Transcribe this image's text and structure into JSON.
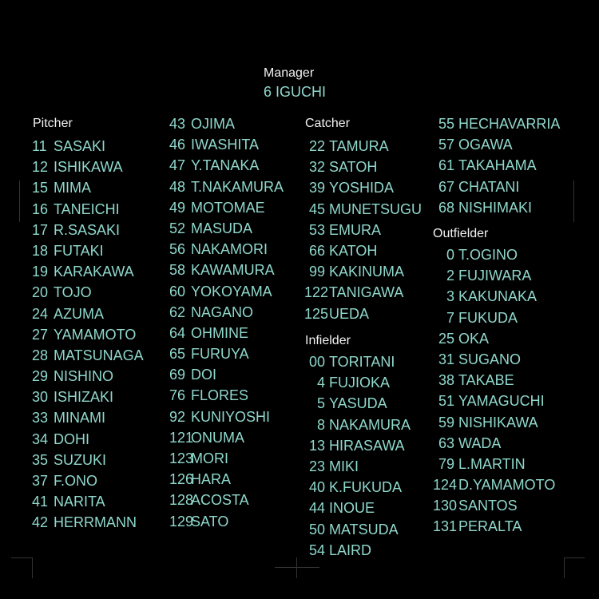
{
  "colors": {
    "text": "#8fd8cc",
    "heading": "#f2f2f2",
    "background": "#000000"
  },
  "manager": {
    "label": "Manager",
    "name": "6 IGUCHI"
  },
  "pitcher": {
    "label": "Pitcher",
    "players": [
      {
        "no": "11",
        "name": "SASAKI"
      },
      {
        "no": "12",
        "name": "ISHIKAWA"
      },
      {
        "no": "15",
        "name": "MIMA"
      },
      {
        "no": "16",
        "name": "TANEICHI"
      },
      {
        "no": "17",
        "name": "R.SASAKI"
      },
      {
        "no": "18",
        "name": "FUTAKI"
      },
      {
        "no": "19",
        "name": "KARAKAWA"
      },
      {
        "no": "20",
        "name": "TOJO"
      },
      {
        "no": "24",
        "name": "AZUMA"
      },
      {
        "no": "27",
        "name": "YAMAMOTO"
      },
      {
        "no": "28",
        "name": "MATSUNAGA"
      },
      {
        "no": "29",
        "name": "NISHINO"
      },
      {
        "no": "30",
        "name": "ISHIZAKI"
      },
      {
        "no": "33",
        "name": "MINAMI"
      },
      {
        "no": "34",
        "name": "DOHI"
      },
      {
        "no": "35",
        "name": "SUZUKI"
      },
      {
        "no": "37",
        "name": "F.ONO"
      },
      {
        "no": "41",
        "name": "NARITA"
      },
      {
        "no": "42",
        "name": "HERRMANN"
      },
      {
        "no": "43",
        "name": "OJIMA"
      },
      {
        "no": "46",
        "name": "IWASHITA"
      },
      {
        "no": "47",
        "name": "Y.TANAKA"
      },
      {
        "no": "48",
        "name": "T.NAKAMURA"
      },
      {
        "no": "49",
        "name": "MOTOMAE"
      },
      {
        "no": "52",
        "name": "MASUDA"
      },
      {
        "no": "56",
        "name": "NAKAMORI"
      },
      {
        "no": "58",
        "name": "KAWAMURA"
      },
      {
        "no": "60",
        "name": "YOKOYAMA"
      },
      {
        "no": "62",
        "name": "NAGANO"
      },
      {
        "no": "64",
        "name": "OHMINE"
      },
      {
        "no": "65",
        "name": "FURUYA"
      },
      {
        "no": "69",
        "name": "DOI"
      },
      {
        "no": "76",
        "name": "FLORES"
      },
      {
        "no": "92",
        "name": "KUNIYOSHI"
      },
      {
        "no": "121",
        "name": "ONUMA"
      },
      {
        "no": "123",
        "name": "MORI"
      },
      {
        "no": "126",
        "name": "HARA"
      },
      {
        "no": "128",
        "name": "ACOSTA"
      },
      {
        "no": "129",
        "name": "SATO"
      }
    ]
  },
  "catcher": {
    "label": "Catcher",
    "players": [
      {
        "no": "22",
        "name": "TAMURA"
      },
      {
        "no": "32",
        "name": "SATOH"
      },
      {
        "no": "39",
        "name": "YOSHIDA"
      },
      {
        "no": "45",
        "name": "MUNETSUGU"
      },
      {
        "no": "53",
        "name": "EMURA"
      },
      {
        "no": "66",
        "name": "KATOH"
      },
      {
        "no": "99",
        "name": "KAKINUMA"
      },
      {
        "no": "122",
        "name": "TANIGAWA"
      },
      {
        "no": "125",
        "name": "UEDA"
      }
    ]
  },
  "infielder": {
    "label": "Infielder",
    "players": [
      {
        "no": "00",
        "name": "TORITANI"
      },
      {
        "no": "4",
        "name": "FUJIOKA"
      },
      {
        "no": "5",
        "name": "YASUDA"
      },
      {
        "no": "8",
        "name": "NAKAMURA"
      },
      {
        "no": "13",
        "name": "HIRASAWA"
      },
      {
        "no": "23",
        "name": "MIKI"
      },
      {
        "no": "40",
        "name": "K.FUKUDA"
      },
      {
        "no": "44",
        "name": "INOUE"
      },
      {
        "no": "50",
        "name": "MATSUDA"
      },
      {
        "no": "54",
        "name": "LAIRD"
      },
      {
        "no": "55",
        "name": "HECHAVARRIA"
      },
      {
        "no": "57",
        "name": "OGAWA"
      },
      {
        "no": "61",
        "name": "TAKAHAMA"
      },
      {
        "no": "67",
        "name": "CHATANI"
      },
      {
        "no": "68",
        "name": "NISHIMAKI"
      }
    ]
  },
  "outfielder": {
    "label": "Outfielder",
    "players": [
      {
        "no": "0",
        "name": "T.OGINO"
      },
      {
        "no": "2",
        "name": "FUJIWARA"
      },
      {
        "no": "3",
        "name": "KAKUNAKA"
      },
      {
        "no": "7",
        "name": "FUKUDA"
      },
      {
        "no": "25",
        "name": "OKA"
      },
      {
        "no": "31",
        "name": "SUGANO"
      },
      {
        "no": "38",
        "name": "TAKABE"
      },
      {
        "no": "51",
        "name": "YAMAGUCHI"
      },
      {
        "no": "59",
        "name": "NISHIKAWA"
      },
      {
        "no": "63",
        "name": "WADA"
      },
      {
        "no": "79",
        "name": "L.MARTIN"
      },
      {
        "no": "124",
        "name": "D.YAMAMOTO"
      },
      {
        "no": "130",
        "name": "SANTOS"
      },
      {
        "no": "131",
        "name": "PERALTA"
      }
    ]
  }
}
